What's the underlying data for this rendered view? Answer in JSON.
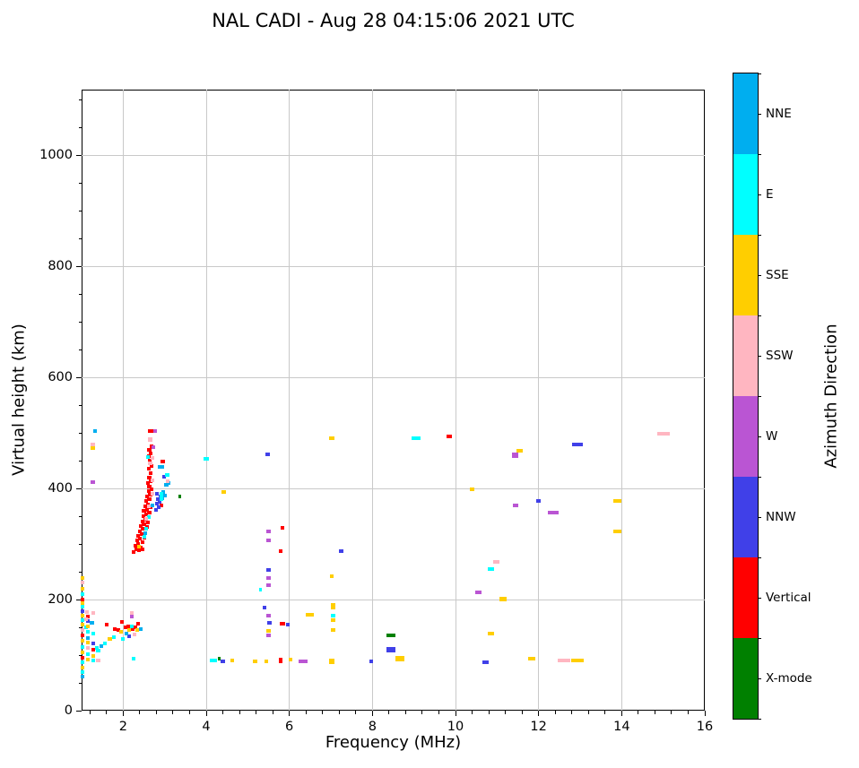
{
  "chart_data": {
    "type": "scatter",
    "title": "NAL CADI - Aug 28 04:15:06 2021 UTC",
    "xlabel": "Frequency (MHz)",
    "ylabel": "Virtual height (km)",
    "xlim": [
      1,
      16
    ],
    "ylim": [
      0,
      1118
    ],
    "x_major_ticks": [
      2,
      4,
      6,
      8,
      10,
      12,
      14,
      16
    ],
    "x_minor_step": 0.4,
    "y_major_ticks": [
      0,
      200,
      400,
      600,
      800,
      1000
    ],
    "y_minor_step": 50,
    "grid": true,
    "grid_color": "#c9c9c9",
    "background": "#ffffff",
    "colorbar": {
      "label": "Azimuth Direction",
      "order_top_to_bottom": [
        "NNE",
        "E",
        "SSE",
        "SSW",
        "W",
        "NNW",
        "Vertical",
        "X-mode"
      ]
    },
    "categories": {
      "NNE": "#00AEEF",
      "E": "#00FFFF",
      "SSE": "#FFCE00",
      "SSW": "#FFB6C1",
      "W": "#BA55D3",
      "NNW": "#4040E8",
      "Vertical": "#FF0000",
      "X-mode": "#008000"
    },
    "point_format": "[frequency_MHz, virtual_height_km, freq_extent_MHz(optional), height_extent_km(optional)]",
    "series": [
      {
        "name": "Vertical",
        "points": [
          [
            2.26,
            286
          ],
          [
            2.32,
            291
          ],
          [
            2.38,
            288
          ],
          [
            2.29,
            297
          ],
          [
            2.36,
            300
          ],
          [
            2.43,
            294
          ],
          [
            2.47,
            290
          ],
          [
            2.33,
            306
          ],
          [
            2.4,
            309
          ],
          [
            2.47,
            303
          ],
          [
            2.36,
            314
          ],
          [
            2.44,
            318
          ],
          [
            2.51,
            312
          ],
          [
            2.4,
            323
          ],
          [
            2.47,
            327
          ],
          [
            2.43,
            332
          ],
          [
            2.5,
            336
          ],
          [
            2.57,
            330
          ],
          [
            2.46,
            341
          ],
          [
            2.53,
            344
          ],
          [
            2.6,
            338
          ],
          [
            2.49,
            350
          ],
          [
            2.56,
            353
          ],
          [
            2.5,
            359
          ],
          [
            2.57,
            362
          ],
          [
            2.63,
            357
          ],
          [
            2.53,
            368
          ],
          [
            2.6,
            371
          ],
          [
            2.66,
            366
          ],
          [
            2.56,
            377
          ],
          [
            2.63,
            380
          ],
          [
            2.58,
            386
          ],
          [
            2.65,
            389
          ],
          [
            2.61,
            395
          ],
          [
            2.68,
            398
          ],
          [
            2.63,
            403
          ],
          [
            2.6,
            410
          ],
          [
            2.67,
            413
          ],
          [
            2.63,
            420
          ],
          [
            2.66,
            428
          ],
          [
            2.62,
            436
          ],
          [
            2.68,
            440
          ],
          [
            2.64,
            450
          ],
          [
            2.61,
            458
          ],
          [
            2.66,
            463
          ],
          [
            2.63,
            470
          ],
          [
            2.68,
            476
          ],
          [
            2.64,
            488
          ],
          [
            2.64,
            503
          ],
          [
            2.71,
            504
          ],
          [
            2.95,
            448,
            0.12
          ],
          [
            2.93,
            370
          ],
          [
            2.93,
            380
          ],
          [
            1.6,
            155
          ],
          [
            1.8,
            147
          ],
          [
            1.88,
            145
          ],
          [
            1.97,
            160
          ],
          [
            2.05,
            150
          ],
          [
            2.12,
            152
          ],
          [
            2.23,
            147
          ],
          [
            2.3,
            150
          ],
          [
            2.36,
            157
          ],
          [
            1.15,
            169
          ],
          [
            1.28,
            110
          ],
          [
            1.02,
            200
          ],
          [
            1.02,
            135
          ],
          [
            1.02,
            95
          ],
          [
            5.83,
            329
          ],
          [
            5.8,
            287
          ],
          [
            5.84,
            156,
            0.14
          ],
          [
            5.8,
            90,
            0.09,
            10
          ],
          [
            9.85,
            493,
            0.12
          ]
        ]
      },
      {
        "name": "NNW",
        "points": [
          [
            2.8,
            362
          ],
          [
            2.86,
            366
          ],
          [
            2.82,
            372
          ],
          [
            2.88,
            376
          ],
          [
            2.84,
            381
          ],
          [
            2.9,
            385
          ],
          [
            2.81,
            390
          ],
          [
            2.99,
            421
          ],
          [
            5.48,
            462,
            0.12
          ],
          [
            7.25,
            287,
            0.12
          ],
          [
            5.5,
            253,
            0.1
          ],
          [
            5.4,
            185,
            0.08
          ],
          [
            5.52,
            158,
            0.1
          ],
          [
            5.97,
            155,
            0.08
          ],
          [
            8.45,
            110,
            0.22,
            9
          ],
          [
            7.97,
            88,
            0.1
          ],
          [
            10.72,
            87,
            0.15
          ],
          [
            12.0,
            377,
            0.12
          ],
          [
            12.93,
            479,
            0.27
          ],
          [
            4.4,
            88,
            0.09
          ],
          [
            1.02,
            179
          ],
          [
            1.15,
            161
          ],
          [
            1.28,
            121
          ],
          [
            2.15,
            134
          ]
        ]
      },
      {
        "name": "NNE",
        "points": [
          [
            1.33,
            504
          ],
          [
            2.92,
            439,
            0.15
          ],
          [
            3.04,
            406
          ],
          [
            3.1,
            409
          ],
          [
            2.95,
            383
          ],
          [
            3.0,
            387
          ],
          [
            2.97,
            393
          ],
          [
            2.54,
            320
          ],
          [
            2.71,
            370
          ],
          [
            1.47,
            116
          ],
          [
            2.08,
            139
          ],
          [
            2.42,
            147
          ],
          [
            1.25,
            158
          ],
          [
            1.16,
            131
          ],
          [
            1.02,
            62
          ]
        ]
      },
      {
        "name": "E",
        "points": [
          [
            2.6,
            457
          ],
          [
            3.06,
            424
          ],
          [
            4.0,
            453,
            0.15
          ],
          [
            9.05,
            490,
            0.2
          ],
          [
            10.85,
            255,
            0.15
          ],
          [
            5.3,
            218,
            0.06
          ],
          [
            7.05,
            171,
            0.1
          ],
          [
            4.17,
            90,
            0.17
          ],
          [
            2.25,
            94
          ],
          [
            2.92,
            385,
            0.07,
            16
          ],
          [
            2.52,
            313
          ],
          [
            2.56,
            327
          ],
          [
            2.62,
            349
          ],
          [
            1.02,
            187
          ],
          [
            1.02,
            163
          ],
          [
            1.16,
            142
          ],
          [
            1.28,
            139
          ],
          [
            1.02,
            115
          ],
          [
            1.16,
            102
          ],
          [
            1.28,
            91
          ],
          [
            1.36,
            113
          ],
          [
            1.57,
            121
          ],
          [
            1.77,
            132
          ],
          [
            2.0,
            129
          ],
          [
            2.2,
            152
          ],
          [
            1.4,
            108
          ],
          [
            1.1,
            150
          ],
          [
            1.02,
            210
          ],
          [
            1.02,
            87
          ],
          [
            1.02,
            69
          ]
        ]
      },
      {
        "name": "SSE",
        "points": [
          [
            1.27,
            472
          ],
          [
            4.42,
            394,
            0.12
          ],
          [
            7.02,
            490,
            0.12
          ],
          [
            11.55,
            468,
            0.15
          ],
          [
            13.9,
            377,
            0.2
          ],
          [
            13.9,
            322,
            0.2
          ],
          [
            10.4,
            398,
            0.12
          ],
          [
            7.02,
            242,
            0.1
          ],
          [
            11.15,
            201,
            0.17,
            9
          ],
          [
            6.5,
            172,
            0.2
          ],
          [
            7.05,
            188,
            0.1,
            11
          ],
          [
            7.05,
            163,
            0.1
          ],
          [
            7.05,
            145,
            0.1
          ],
          [
            8.67,
            93,
            0.22,
            10
          ],
          [
            10.85,
            139,
            0.15
          ],
          [
            11.83,
            93,
            0.17
          ],
          [
            12.93,
            90,
            0.3
          ],
          [
            4.62,
            91,
            0.08
          ],
          [
            5.18,
            88,
            0.12
          ],
          [
            5.45,
            88,
            0.1
          ],
          [
            6.03,
            92,
            0.07
          ],
          [
            7.02,
            89,
            0.12,
            10
          ],
          [
            5.5,
            144,
            0.1
          ],
          [
            2.38,
            295
          ],
          [
            1.02,
            238
          ],
          [
            1.02,
            219
          ],
          [
            1.02,
            193
          ],
          [
            1.02,
            171
          ],
          [
            1.02,
            155
          ],
          [
            1.16,
            152
          ],
          [
            1.02,
            126
          ],
          [
            1.16,
            123
          ],
          [
            1.02,
            105
          ],
          [
            1.28,
            98
          ],
          [
            1.16,
            92
          ],
          [
            1.68,
            129
          ],
          [
            1.95,
            142
          ],
          [
            2.14,
            145
          ],
          [
            2.33,
            145
          ],
          [
            1.02,
            78
          ]
        ]
      },
      {
        "name": "SSW",
        "points": [
          [
            1.27,
            479
          ],
          [
            15.0,
            498,
            0.3
          ],
          [
            10.98,
            268,
            0.15
          ],
          [
            12.62,
            90,
            0.3
          ],
          [
            2.7,
            455
          ],
          [
            2.55,
            345
          ],
          [
            2.62,
            368
          ],
          [
            2.7,
            390
          ],
          [
            2.7,
            415
          ],
          [
            2.65,
            445
          ],
          [
            2.65,
            488
          ],
          [
            3.08,
            413
          ],
          [
            2.2,
            176
          ],
          [
            2.27,
            137
          ],
          [
            1.02,
            230
          ],
          [
            1.02,
            145
          ],
          [
            1.16,
            113
          ],
          [
            1.4,
            90
          ],
          [
            1.13,
            178
          ],
          [
            1.28,
            176
          ],
          [
            1.1,
            165
          ]
        ]
      },
      {
        "name": "W",
        "points": [
          [
            1.27,
            412
          ],
          [
            2.77,
            504
          ],
          [
            2.72,
            475
          ],
          [
            5.5,
            322,
            0.12
          ],
          [
            5.5,
            307,
            0.12
          ],
          [
            5.5,
            239,
            0.12
          ],
          [
            5.5,
            226,
            0.12
          ],
          [
            10.55,
            213,
            0.17
          ],
          [
            11.44,
            460,
            0.15,
            10
          ],
          [
            11.45,
            370,
            0.12
          ],
          [
            12.35,
            356,
            0.25
          ],
          [
            6.33,
            88,
            0.2
          ],
          [
            5.5,
            171,
            0.1
          ],
          [
            5.5,
            136,
            0.1
          ],
          [
            2.21,
            170
          ]
        ]
      },
      {
        "name": "X-mode",
        "points": [
          [
            3.37,
            385,
            0.07
          ],
          [
            8.45,
            136,
            0.22
          ],
          [
            4.32,
            93,
            0.07
          ]
        ]
      }
    ]
  }
}
